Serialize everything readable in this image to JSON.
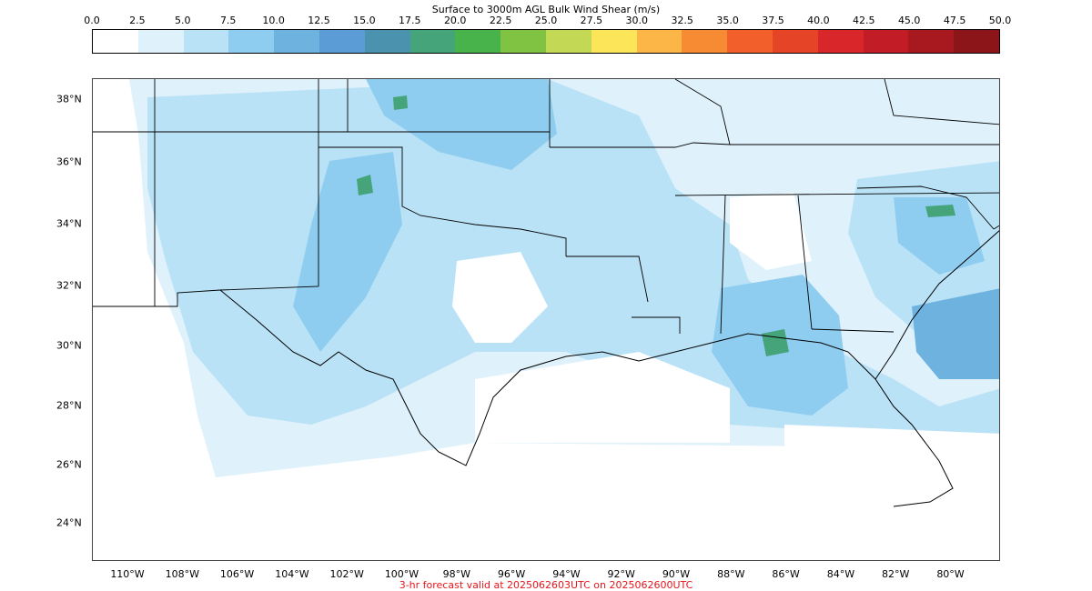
{
  "title": "Surface to 3000m AGL Bulk Wind Shear (m/s)",
  "footer": "3-hr forecast valid at 2025062603UTC on 2025062600UTC",
  "footer_color": "#e8151b",
  "colorbar": {
    "ticks": [
      "0.0",
      "2.5",
      "5.0",
      "7.5",
      "10.0",
      "12.5",
      "15.0",
      "17.5",
      "20.0",
      "22.5",
      "25.0",
      "27.5",
      "30.0",
      "32.5",
      "35.0",
      "37.5",
      "40.0",
      "42.5",
      "45.0",
      "47.5",
      "50.0"
    ],
    "colors": [
      "#ffffff",
      "#dff1fb",
      "#b9e2f6",
      "#8fcdf0",
      "#6eb2e0",
      "#5b9bd6",
      "#4a92ae",
      "#45a47a",
      "#48b34a",
      "#80c241",
      "#c3d955",
      "#fde55a",
      "#fbb647",
      "#f78b34",
      "#f25f2a",
      "#e64426",
      "#d9262a",
      "#c21d27",
      "#a8191f",
      "#8b1519"
    ]
  },
  "map": {
    "lat_labels": [
      "38°N",
      "36°N",
      "34°N",
      "32°N",
      "30°N",
      "28°N",
      "26°N",
      "24°N"
    ],
    "lon_labels": [
      "110°W",
      "108°W",
      "106°W",
      "104°W",
      "102°W",
      "100°W",
      "98°W",
      "96°W",
      "94°W",
      "92°W",
      "90°W",
      "88°W",
      "86°W",
      "84°W",
      "82°W",
      "80°W"
    ]
  }
}
